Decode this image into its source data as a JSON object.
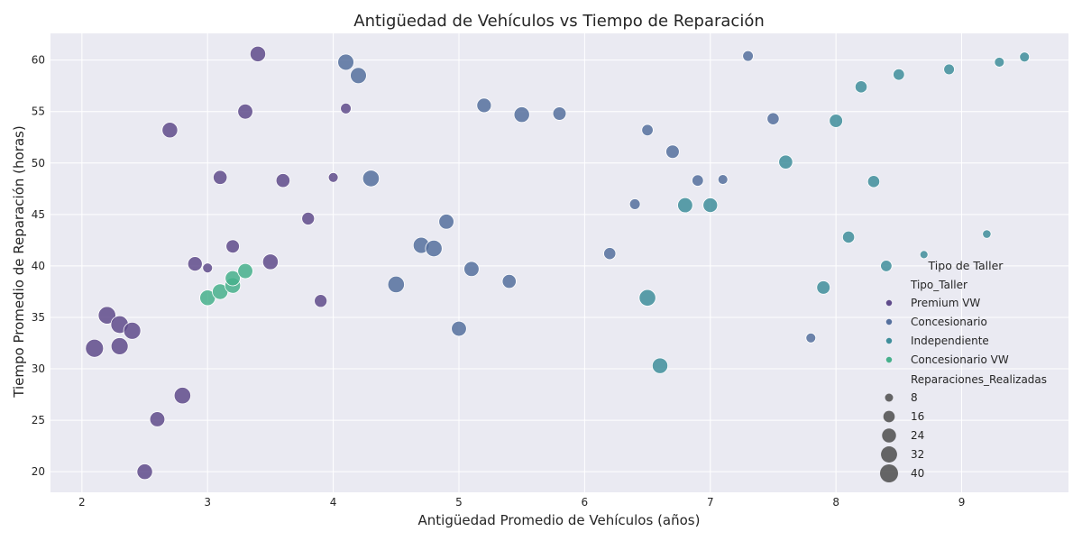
{
  "chart_data": {
    "type": "scatter",
    "title": "Antigüedad de Vehículos vs Tiempo de Reparación",
    "xlabel": "Antigüedad Promedio de Vehículos (años)",
    "ylabel": "Tiempo Promedio de Reparación (horas)",
    "xlim": [
      1.75,
      9.85
    ],
    "ylim": [
      18,
      62.6
    ],
    "x_ticks": [
      2,
      3,
      4,
      5,
      6,
      7,
      8,
      9
    ],
    "y_ticks": [
      20,
      25,
      30,
      35,
      40,
      45,
      50,
      55,
      60
    ],
    "grid": true,
    "legend_position": "lower right",
    "legend": {
      "title": "Tipo de Taller",
      "hue_title": "Tipo_Taller",
      "size_title": "Reparaciones_Realizadas",
      "size_levels": [
        8,
        16,
        24,
        32,
        40
      ]
    },
    "series": [
      {
        "name": "Premium VW",
        "color": "#5f4b8b",
        "points": [
          {
            "x": 2.1,
            "y": 32.0,
            "size": 40
          },
          {
            "x": 2.2,
            "y": 35.2,
            "size": 38
          },
          {
            "x": 2.3,
            "y": 34.3,
            "size": 38
          },
          {
            "x": 2.4,
            "y": 33.7,
            "size": 36
          },
          {
            "x": 2.3,
            "y": 32.2,
            "size": 36
          },
          {
            "x": 2.5,
            "y": 20.0,
            "size": 30
          },
          {
            "x": 2.6,
            "y": 25.1,
            "size": 28
          },
          {
            "x": 2.8,
            "y": 27.4,
            "size": 34
          },
          {
            "x": 2.7,
            "y": 53.2,
            "size": 30
          },
          {
            "x": 2.9,
            "y": 40.2,
            "size": 26
          },
          {
            "x": 3.0,
            "y": 39.8,
            "size": 12
          },
          {
            "x": 3.1,
            "y": 48.6,
            "size": 24
          },
          {
            "x": 3.2,
            "y": 41.9,
            "size": 22
          },
          {
            "x": 3.3,
            "y": 55.0,
            "size": 28
          },
          {
            "x": 3.4,
            "y": 60.6,
            "size": 30
          },
          {
            "x": 3.5,
            "y": 40.4,
            "size": 30
          },
          {
            "x": 3.6,
            "y": 48.3,
            "size": 24
          },
          {
            "x": 3.8,
            "y": 44.6,
            "size": 20
          },
          {
            "x": 3.9,
            "y": 36.6,
            "size": 20
          },
          {
            "x": 4.0,
            "y": 48.6,
            "size": 12
          },
          {
            "x": 4.1,
            "y": 55.3,
            "size": 14
          }
        ]
      },
      {
        "name": "Concesionario",
        "color": "#55709e",
        "points": [
          {
            "x": 4.1,
            "y": 59.8,
            "size": 32
          },
          {
            "x": 4.2,
            "y": 58.5,
            "size": 32
          },
          {
            "x": 4.3,
            "y": 48.5,
            "size": 34
          },
          {
            "x": 4.5,
            "y": 38.2,
            "size": 34
          },
          {
            "x": 4.7,
            "y": 42.0,
            "size": 32
          },
          {
            "x": 4.8,
            "y": 41.7,
            "size": 34
          },
          {
            "x": 4.9,
            "y": 44.3,
            "size": 28
          },
          {
            "x": 5.0,
            "y": 33.9,
            "size": 28
          },
          {
            "x": 5.1,
            "y": 39.7,
            "size": 28
          },
          {
            "x": 5.2,
            "y": 55.6,
            "size": 26
          },
          {
            "x": 5.4,
            "y": 38.5,
            "size": 24
          },
          {
            "x": 5.5,
            "y": 54.7,
            "size": 30
          },
          {
            "x": 5.8,
            "y": 54.8,
            "size": 22
          },
          {
            "x": 6.2,
            "y": 41.2,
            "size": 18
          },
          {
            "x": 6.4,
            "y": 46.0,
            "size": 14
          },
          {
            "x": 6.5,
            "y": 53.2,
            "size": 16
          },
          {
            "x": 6.7,
            "y": 51.1,
            "size": 22
          },
          {
            "x": 6.9,
            "y": 48.3,
            "size": 16
          },
          {
            "x": 7.1,
            "y": 48.4,
            "size": 12
          },
          {
            "x": 7.3,
            "y": 60.4,
            "size": 14
          },
          {
            "x": 7.5,
            "y": 54.3,
            "size": 18
          },
          {
            "x": 7.8,
            "y": 33.0,
            "size": 12
          }
        ]
      },
      {
        "name": "Independiente",
        "color": "#3f8e9b",
        "points": [
          {
            "x": 6.5,
            "y": 36.9,
            "size": 34
          },
          {
            "x": 6.6,
            "y": 30.3,
            "size": 30
          },
          {
            "x": 6.8,
            "y": 45.9,
            "size": 28
          },
          {
            "x": 7.0,
            "y": 45.9,
            "size": 26
          },
          {
            "x": 7.6,
            "y": 50.1,
            "size": 24
          },
          {
            "x": 7.9,
            "y": 37.9,
            "size": 22
          },
          {
            "x": 8.0,
            "y": 54.1,
            "size": 22
          },
          {
            "x": 8.1,
            "y": 42.8,
            "size": 18
          },
          {
            "x": 8.2,
            "y": 57.4,
            "size": 18
          },
          {
            "x": 8.3,
            "y": 48.2,
            "size": 18
          },
          {
            "x": 8.4,
            "y": 40.0,
            "size": 16
          },
          {
            "x": 8.5,
            "y": 58.6,
            "size": 16
          },
          {
            "x": 8.7,
            "y": 41.1,
            "size": 8
          },
          {
            "x": 8.9,
            "y": 59.1,
            "size": 14
          },
          {
            "x": 9.2,
            "y": 43.1,
            "size": 9
          },
          {
            "x": 9.3,
            "y": 59.8,
            "size": 12
          },
          {
            "x": 9.5,
            "y": 60.3,
            "size": 12
          }
        ]
      },
      {
        "name": "Concesionario VW",
        "color": "#46b08c",
        "points": [
          {
            "x": 3.0,
            "y": 36.9,
            "size": 30
          },
          {
            "x": 3.1,
            "y": 37.5,
            "size": 30
          },
          {
            "x": 3.2,
            "y": 38.1,
            "size": 30
          },
          {
            "x": 3.2,
            "y": 38.8,
            "size": 28
          },
          {
            "x": 3.3,
            "y": 39.5,
            "size": 28
          }
        ]
      }
    ]
  }
}
